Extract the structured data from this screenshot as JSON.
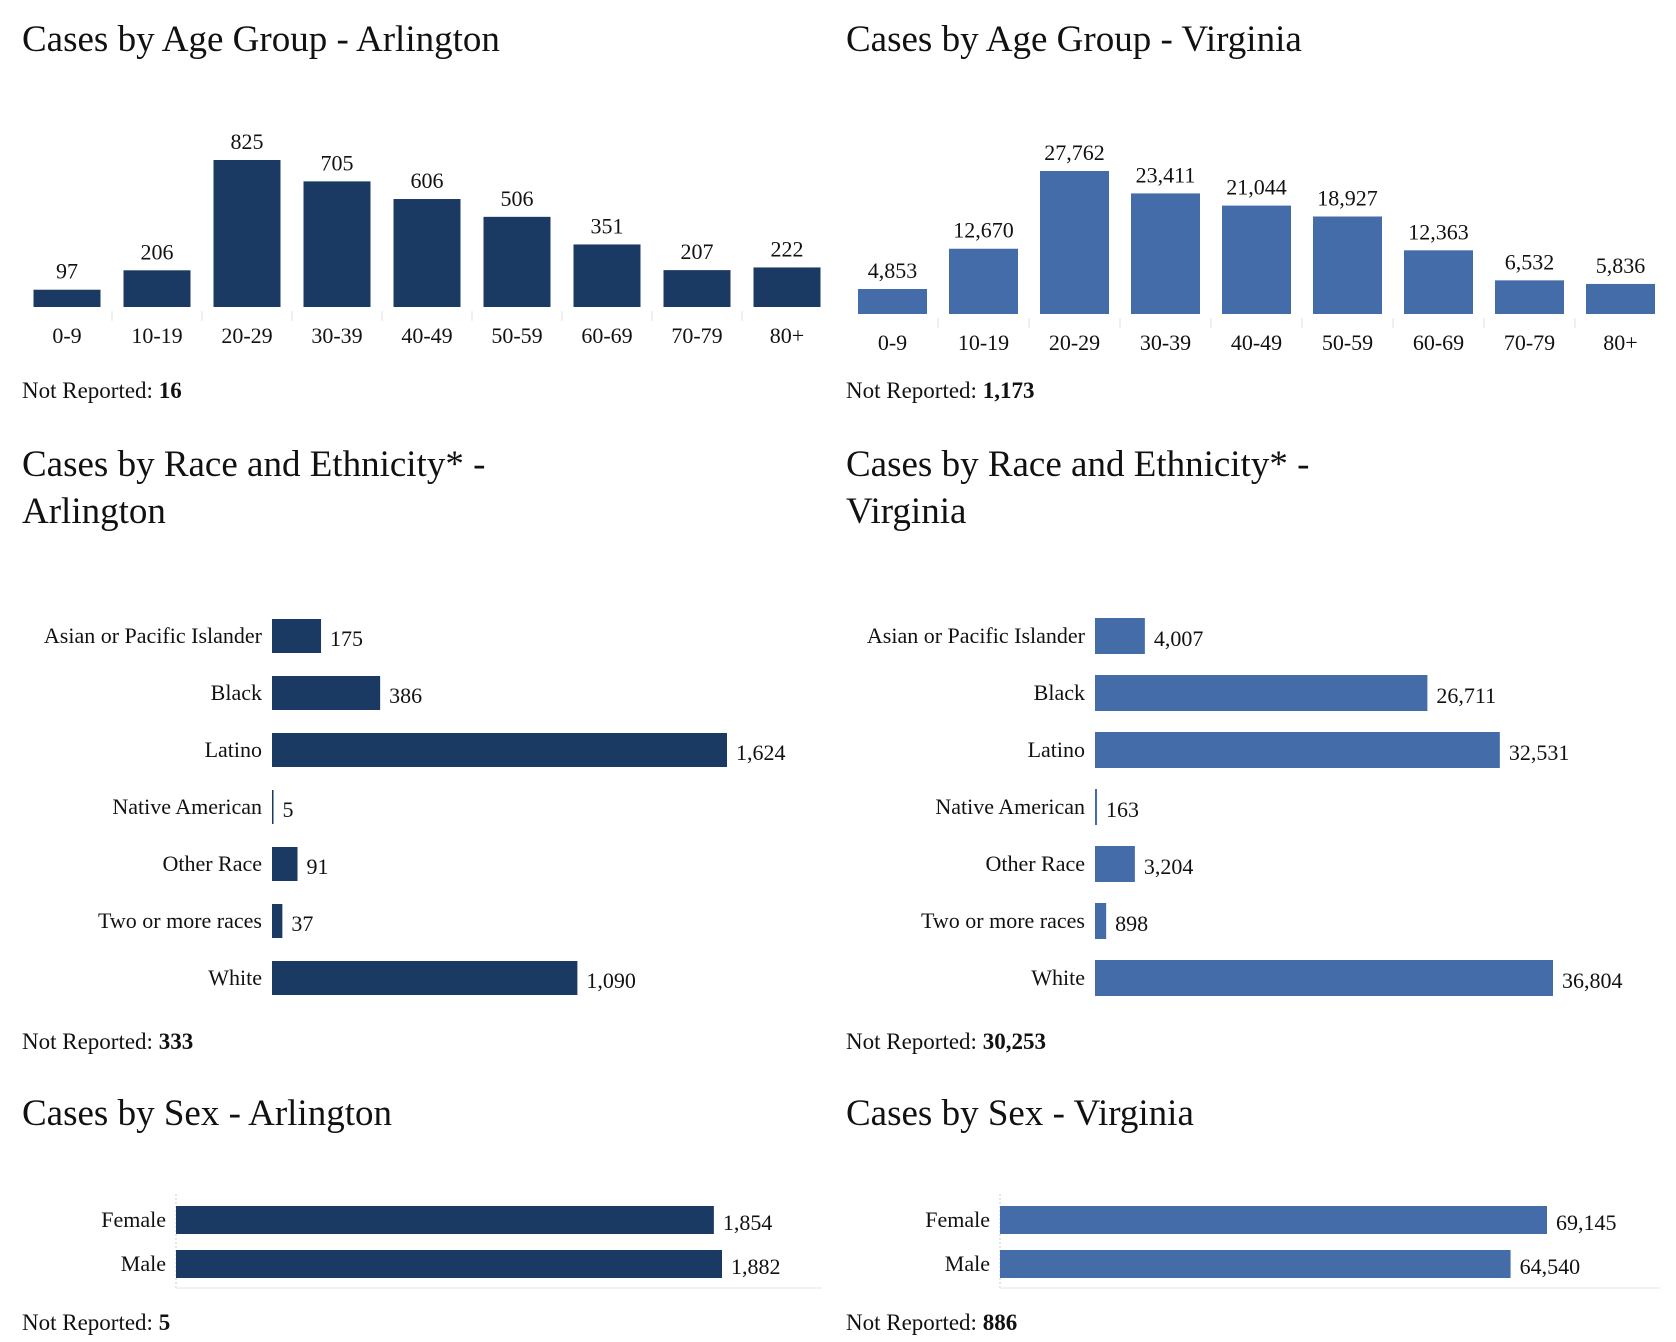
{
  "colors": {
    "arlington": "#1b3a63",
    "virginia": "#446ca9",
    "axis": "#e2e2e2"
  },
  "not_reported_label": "Not Reported: ",
  "chart_data": [
    {
      "id": "age-arlington",
      "type": "bar",
      "title": "Cases by Age Group - Arlington",
      "xlabel": "",
      "ylabel": "",
      "categories": [
        "0-9",
        "10-19",
        "20-29",
        "30-39",
        "40-49",
        "50-59",
        "60-69",
        "70-79",
        "80+"
      ],
      "values": [
        97,
        206,
        825,
        705,
        606,
        506,
        351,
        207,
        222
      ],
      "data_labels": [
        "97",
        "206",
        "825",
        "705",
        "606",
        "506",
        "351",
        "207",
        "222"
      ],
      "ylim": [
        0,
        825
      ],
      "grid": false,
      "not_reported": "16"
    },
    {
      "id": "age-virginia",
      "type": "bar",
      "title": "Cases by Age Group - Virginia",
      "xlabel": "",
      "ylabel": "",
      "categories": [
        "0-9",
        "10-19",
        "20-29",
        "30-39",
        "40-49",
        "50-59",
        "60-69",
        "70-79",
        "80+"
      ],
      "values": [
        4853,
        12670,
        27762,
        23411,
        21044,
        18927,
        12363,
        6532,
        5836
      ],
      "data_labels": [
        "4,853",
        "12,670",
        "27,762",
        "23,411",
        "21,044",
        "18,927",
        "12,363",
        "6,532",
        "5,836"
      ],
      "ylim": [
        0,
        27762
      ],
      "grid": false,
      "not_reported": "1,173"
    },
    {
      "id": "race-arlington",
      "type": "bar",
      "orientation": "horizontal",
      "title": "Cases by Race and Ethnicity* -\nArlington",
      "categories": [
        "Asian or Pacific Islander",
        "Black",
        "Latino",
        "Native American",
        "Other Race",
        "Two or more races",
        "White"
      ],
      "values": [
        175,
        386,
        1624,
        5,
        91,
        37,
        1090
      ],
      "data_labels": [
        "175",
        "386",
        "1,624",
        "5",
        "91",
        "37",
        "1,090"
      ],
      "xlim": [
        0,
        1624
      ],
      "grid": false,
      "not_reported": "333"
    },
    {
      "id": "race-virginia",
      "type": "bar",
      "orientation": "horizontal",
      "title": "Cases by Race and Ethnicity* -\nVirginia",
      "categories": [
        "Asian or Pacific Islander",
        "Black",
        "Latino",
        "Native American",
        "Other Race",
        "Two or more races",
        "White"
      ],
      "values": [
        4007,
        26711,
        32531,
        163,
        3204,
        898,
        36804
      ],
      "data_labels": [
        "4,007",
        "26,711",
        "32,531",
        "163",
        "3,204",
        "898",
        "36,804"
      ],
      "xlim": [
        0,
        36804
      ],
      "grid": false,
      "not_reported": "30,253"
    },
    {
      "id": "sex-arlington",
      "type": "bar",
      "orientation": "horizontal",
      "title": "Cases by Sex - Arlington",
      "categories": [
        "Female",
        "Male"
      ],
      "values": [
        1854,
        1882
      ],
      "data_labels": [
        "1,854",
        "1,882"
      ],
      "xlim": [
        0,
        1882
      ],
      "grid": false,
      "not_reported": "5"
    },
    {
      "id": "sex-virginia",
      "type": "bar",
      "orientation": "horizontal",
      "title": "Cases by Sex - Virginia",
      "categories": [
        "Female",
        "Male"
      ],
      "values": [
        69145,
        64540
      ],
      "data_labels": [
        "69,145",
        "64,540"
      ],
      "xlim": [
        0,
        69145
      ],
      "grid": false,
      "not_reported": "886"
    }
  ]
}
